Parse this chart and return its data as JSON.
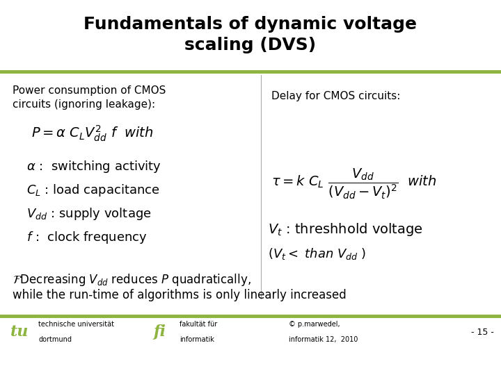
{
  "title_line1": "Fundamentals of dynamic voltage",
  "title_line2": "scaling (DVS)",
  "green_color": "#8db43e",
  "bg_color": "#ffffff",
  "text_color": "#000000",
  "footer_left1": "technische universität",
  "footer_left2": "dortmund",
  "footer_mid1": "fakultät für",
  "footer_mid2": "informatik",
  "footer_copy1": "© p.marwedel,",
  "footer_copy2": "informatik 12,  2010",
  "footer_page": "- 15 -"
}
